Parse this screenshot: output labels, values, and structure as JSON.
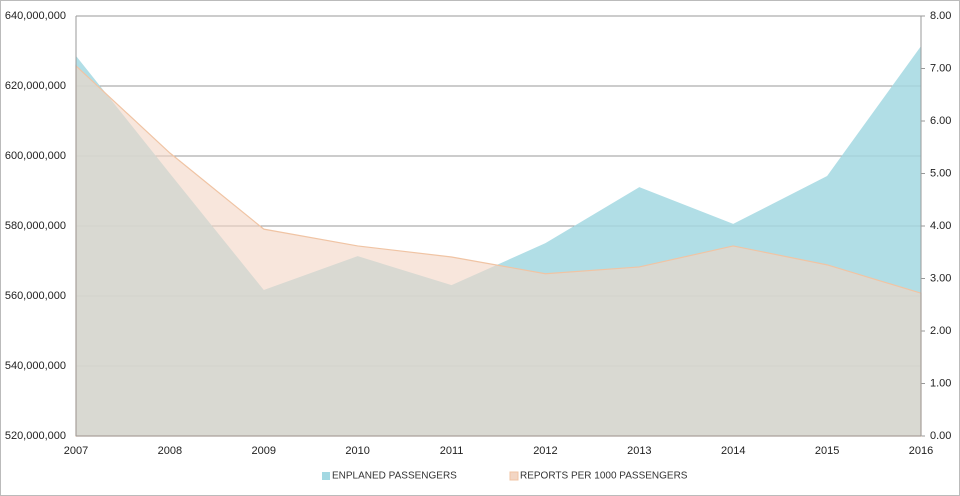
{
  "chart_data": {
    "type": "area",
    "categories": [
      "2007",
      "2008",
      "2009",
      "2010",
      "2011",
      "2012",
      "2013",
      "2014",
      "2015",
      "2016"
    ],
    "series": [
      {
        "name": "ENPLANED PASSENGERS",
        "color": "#a3d8e2",
        "values": [
          628600000,
          595000000,
          561700000,
          571400000,
          563100000,
          575100000,
          591100000,
          580600000,
          594300000,
          631400000
        ]
      },
      {
        "name": "REPORTS PER 1000 PASSENGERS",
        "color": "#f3d6c4",
        "axis": "y2",
        "values": [
          7.05,
          5.39,
          3.94,
          3.62,
          3.41,
          3.09,
          3.22,
          3.62,
          3.26,
          2.72
        ]
      }
    ],
    "ylim": [
      520000000,
      640000000
    ],
    "yticks": [
      {
        "value": 520000000,
        "label": "520,000,000"
      },
      {
        "value": 540000000,
        "label": "540,000,000"
      },
      {
        "value": 560000000,
        "label": "560,000,000"
      },
      {
        "value": 580000000,
        "label": "580,000,000"
      },
      {
        "value": 600000000,
        "label": "600,000,000"
      },
      {
        "value": 620000000,
        "label": "620,000,000"
      },
      {
        "value": 640000000,
        "label": "640,000,000"
      }
    ],
    "y2lim": [
      0,
      8
    ],
    "y2ticks": [
      {
        "value": 0,
        "label": "0.00"
      },
      {
        "value": 1,
        "label": "1.00"
      },
      {
        "value": 2,
        "label": "2.00"
      },
      {
        "value": 3,
        "label": "3.00"
      },
      {
        "value": 4,
        "label": "4.00"
      },
      {
        "value": 5,
        "label": "5.00"
      },
      {
        "value": 6,
        "label": "6.00"
      },
      {
        "value": 7,
        "label": "7.00"
      },
      {
        "value": 8,
        "label": "8.00"
      }
    ],
    "grid": true,
    "legend": "bottom"
  }
}
